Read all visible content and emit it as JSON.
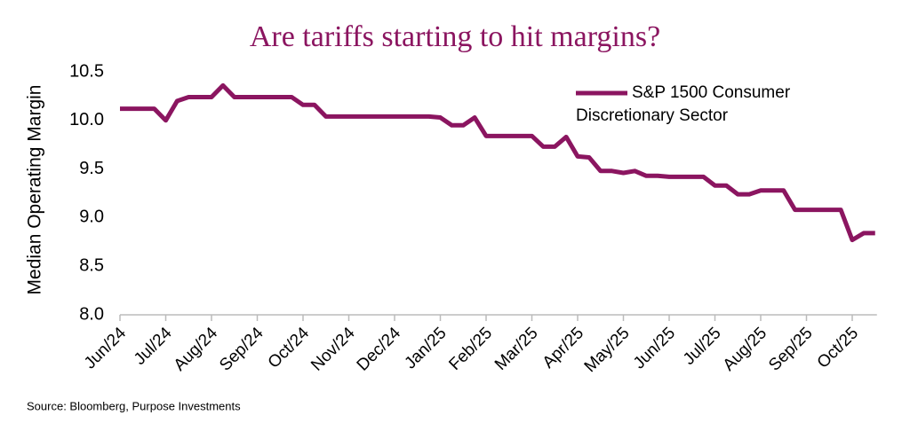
{
  "chart_data": {
    "type": "line",
    "title": "Are tariffs starting to hit margins?",
    "y_label": "Median Operating Margin",
    "source": "Source: Bloomberg,  Purpose Investments",
    "categories": [
      "Jun/24",
      null,
      null,
      null,
      "Jul/24",
      null,
      null,
      null,
      "Aug/24",
      null,
      null,
      null,
      "Sep/24",
      null,
      null,
      null,
      "Oct/24",
      null,
      null,
      null,
      "Nov/24",
      null,
      null,
      null,
      "Dec/24",
      null,
      null,
      null,
      "Jan/25",
      null,
      null,
      null,
      "Feb/25",
      null,
      null,
      null,
      "Mar/25",
      null,
      null,
      null,
      "Apr/25",
      null,
      null,
      null,
      "May/25",
      null,
      null,
      null,
      "Jun/25",
      null,
      null,
      null,
      "Jul/25",
      null,
      null,
      null,
      "Aug/25",
      null,
      null,
      null,
      "Sep/25",
      null,
      null,
      null,
      "Oct/25",
      null,
      null
    ],
    "series": [
      {
        "name": "S&P 1500 Consumer Discretionary Sector",
        "color": "#8b1560",
        "values": [
          10.12,
          10.12,
          10.12,
          10.12,
          10.0,
          10.2,
          10.24,
          10.24,
          10.24,
          10.36,
          10.24,
          10.24,
          10.24,
          10.24,
          10.24,
          10.24,
          10.16,
          10.16,
          10.04,
          10.04,
          10.04,
          10.04,
          10.04,
          10.04,
          10.04,
          10.04,
          10.04,
          10.04,
          10.03,
          9.95,
          9.95,
          10.03,
          9.84,
          9.84,
          9.84,
          9.84,
          9.84,
          9.73,
          9.73,
          9.83,
          9.63,
          9.62,
          9.48,
          9.48,
          9.46,
          9.48,
          9.43,
          9.43,
          9.42,
          9.42,
          9.42,
          9.42,
          9.33,
          9.33,
          9.24,
          9.24,
          9.28,
          9.28,
          9.28,
          9.08,
          9.08,
          9.08,
          9.08,
          9.08,
          8.77,
          8.84,
          8.84
        ]
      }
    ],
    "ylim": [
      8.0,
      10.5
    ],
    "yticks": [
      {
        "value": 8.0,
        "label": "8.0"
      },
      {
        "value": 8.5,
        "label": "8.5"
      },
      {
        "value": 9.0,
        "label": "9.0"
      },
      {
        "value": 9.5,
        "label": "9.5"
      },
      {
        "value": 10.0,
        "label": "10.0"
      },
      {
        "value": 10.5,
        "label": "10.5"
      }
    ],
    "grid": false,
    "legend": "top-right"
  }
}
